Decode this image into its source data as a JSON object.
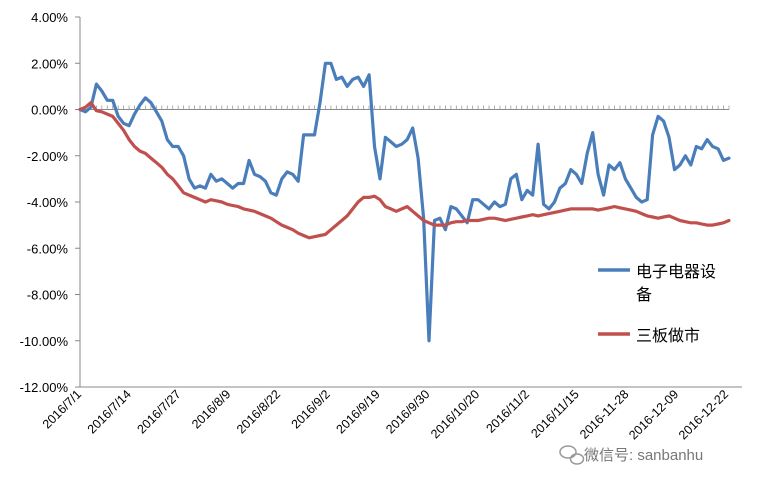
{
  "chart_data": {
    "type": "line",
    "title": "",
    "xlabel": "",
    "ylabel": "",
    "ylim": [
      -12.0,
      4.0
    ],
    "y_ticks": [
      "4.00%",
      "2.00%",
      "0.00%",
      "-2.00%",
      "-4.00%",
      "-6.00%",
      "-8.00%",
      "-10.00%",
      "-12.00%"
    ],
    "x_tick_labels": [
      "2016/7/1",
      "2016/7/14",
      "2016/7/27",
      "2016/8/9",
      "2016/8/22",
      "2016/9/2",
      "2016/9/19",
      "2016/9/30",
      "2016/10/20",
      "2016/11/2",
      "2016/11/15",
      "2016-11-28",
      "2016-12-09",
      "2016-12-22"
    ],
    "x_count": 120,
    "grid": false,
    "legend_placement": "right",
    "series": [
      {
        "name": "电子电器设备",
        "color": "#4a7ebb",
        "values": [
          0.0,
          -0.1,
          0.1,
          1.1,
          0.8,
          0.4,
          0.4,
          -0.3,
          -0.6,
          -0.7,
          -0.2,
          0.2,
          0.5,
          0.3,
          -0.1,
          -0.5,
          -1.3,
          -1.6,
          -1.6,
          -2.0,
          -3.0,
          -3.4,
          -3.3,
          -3.4,
          -2.8,
          -3.1,
          -3.0,
          -3.2,
          -3.4,
          -3.2,
          -3.2,
          -2.2,
          -2.8,
          -2.9,
          -3.1,
          -3.6,
          -3.7,
          -3.0,
          -2.7,
          -2.8,
          -3.1,
          -1.1,
          -1.1,
          -1.1,
          0.3,
          2.0,
          2.0,
          1.3,
          1.4,
          1.0,
          1.3,
          1.4,
          1.0,
          1.5,
          -1.6,
          -3.0,
          -1.2,
          -1.4,
          -1.6,
          -1.5,
          -1.3,
          -0.8,
          -2.1,
          -4.7,
          -10.0,
          -4.8,
          -4.7,
          -5.2,
          -4.2,
          -4.3,
          -4.6,
          -4.9,
          -3.9,
          -3.9,
          -4.1,
          -4.3,
          -4.0,
          -4.2,
          -4.1,
          -3.0,
          -2.8,
          -3.9,
          -3.5,
          -3.7,
          -1.5,
          -4.1,
          -4.3,
          -4.0,
          -3.4,
          -3.2,
          -2.6,
          -2.8,
          -3.2,
          -1.9,
          -1.0,
          -2.8,
          -3.7,
          -2.4,
          -2.6,
          -2.3,
          -3.0,
          -3.4,
          -3.8,
          -4.0,
          -3.9,
          -1.1,
          -0.3,
          -0.5,
          -1.2,
          -2.6,
          -2.4,
          -2.0,
          -2.4,
          -1.6,
          -1.7,
          -1.3,
          -1.6,
          -1.7,
          -2.2,
          -2.1
        ]
      },
      {
        "name": "三板做市",
        "color": "#c0504d",
        "values": [
          0.0,
          0.1,
          0.3,
          -0.05,
          -0.1,
          -0.2,
          -0.3,
          -0.6,
          -0.9,
          -1.3,
          -1.6,
          -1.8,
          -1.9,
          -2.1,
          -2.3,
          -2.5,
          -2.8,
          -3.0,
          -3.3,
          -3.6,
          -3.7,
          -3.8,
          -3.9,
          -4.0,
          -3.9,
          -3.95,
          -4.0,
          -4.1,
          -4.15,
          -4.2,
          -4.3,
          -4.35,
          -4.4,
          -4.5,
          -4.6,
          -4.7,
          -4.85,
          -5.0,
          -5.1,
          -5.2,
          -5.35,
          -5.45,
          -5.55,
          -5.5,
          -5.45,
          -5.4,
          -5.2,
          -5.0,
          -4.8,
          -4.6,
          -4.3,
          -4.0,
          -3.8,
          -3.8,
          -3.75,
          -3.9,
          -4.2,
          -4.3,
          -4.4,
          -4.3,
          -4.2,
          -4.4,
          -4.6,
          -4.8,
          -4.9,
          -5.0,
          -5.0,
          -5.0,
          -4.9,
          -4.85,
          -4.85,
          -4.8,
          -4.8,
          -4.8,
          -4.75,
          -4.7,
          -4.7,
          -4.75,
          -4.8,
          -4.75,
          -4.7,
          -4.65,
          -4.6,
          -4.55,
          -4.6,
          -4.55,
          -4.5,
          -4.45,
          -4.4,
          -4.35,
          -4.3,
          -4.3,
          -4.3,
          -4.3,
          -4.3,
          -4.35,
          -4.3,
          -4.25,
          -4.2,
          -4.25,
          -4.3,
          -4.35,
          -4.4,
          -4.5,
          -4.6,
          -4.65,
          -4.7,
          -4.65,
          -4.6,
          -4.7,
          -4.8,
          -4.85,
          -4.9,
          -4.9,
          -4.95,
          -5.0,
          -5.0,
          -4.95,
          -4.9,
          -4.8
        ]
      }
    ]
  },
  "watermark": {
    "text": "微信号: sanbanhu"
  }
}
